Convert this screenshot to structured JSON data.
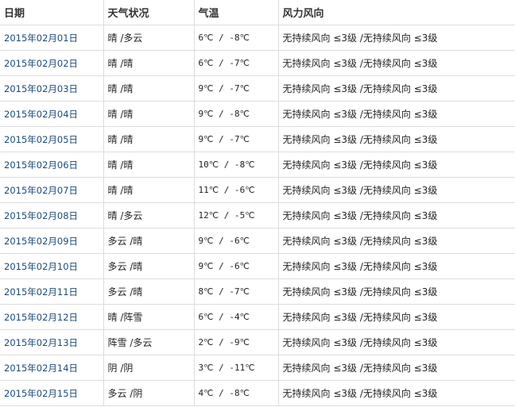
{
  "headers": [
    "日期",
    "天气状况",
    "气温",
    "风力风向"
  ],
  "rows": [
    {
      "date": "2015年02月01日",
      "weather": "晴 /多云",
      "temp": "6℃ / -8℃",
      "wind": "无持续风向 ≤3级 /无持续风向 ≤3级"
    },
    {
      "date": "2015年02月02日",
      "weather": "晴 /晴",
      "temp": "6℃ / -7℃",
      "wind": "无持续风向 ≤3级 /无持续风向 ≤3级"
    },
    {
      "date": "2015年02月03日",
      "weather": "晴 /晴",
      "temp": "9℃ / -7℃",
      "wind": "无持续风向 ≤3级 /无持续风向 ≤3级"
    },
    {
      "date": "2015年02月04日",
      "weather": "晴 /晴",
      "temp": "9℃ / -8℃",
      "wind": "无持续风向 ≤3级 /无持续风向 ≤3级"
    },
    {
      "date": "2015年02月05日",
      "weather": "晴 /晴",
      "temp": "9℃ / -7℃",
      "wind": "无持续风向 ≤3级 /无持续风向 ≤3级"
    },
    {
      "date": "2015年02月06日",
      "weather": "晴 /晴",
      "temp": "10℃ / -8℃",
      "wind": "无持续风向 ≤3级 /无持续风向 ≤3级"
    },
    {
      "date": "2015年02月07日",
      "weather": "晴 /晴",
      "temp": "11℃ / -6℃",
      "wind": "无持续风向 ≤3级 /无持续风向 ≤3级"
    },
    {
      "date": "2015年02月08日",
      "weather": "晴 /多云",
      "temp": "12℃ / -5℃",
      "wind": "无持续风向 ≤3级 /无持续风向 ≤3级"
    },
    {
      "date": "2015年02月09日",
      "weather": "多云 /晴",
      "temp": "9℃ / -6℃",
      "wind": "无持续风向 ≤3级 /无持续风向 ≤3级"
    },
    {
      "date": "2015年02月10日",
      "weather": "多云 /晴",
      "temp": "9℃ / -6℃",
      "wind": "无持续风向 ≤3级 /无持续风向 ≤3级"
    },
    {
      "date": "2015年02月11日",
      "weather": "多云 /晴",
      "temp": "8℃ / -7℃",
      "wind": "无持续风向 ≤3级 /无持续风向 ≤3级"
    },
    {
      "date": "2015年02月12日",
      "weather": "晴 /阵雪",
      "temp": "6℃ / -4℃",
      "wind": "无持续风向 ≤3级 /无持续风向 ≤3级"
    },
    {
      "date": "2015年02月13日",
      "weather": "阵雪 /多云",
      "temp": "2℃ / -9℃",
      "wind": "无持续风向 ≤3级 /无持续风向 ≤3级"
    },
    {
      "date": "2015年02月14日",
      "weather": "阴 /阴",
      "temp": "3℃ / -11℃",
      "wind": "无持续风向 ≤3级 /无持续风向 ≤3级"
    },
    {
      "date": "2015年02月15日",
      "weather": "多云 /阴",
      "temp": "4℃ / -8℃",
      "wind": "无持续风向 ≤3级 /无持续风向 ≤3级"
    }
  ]
}
